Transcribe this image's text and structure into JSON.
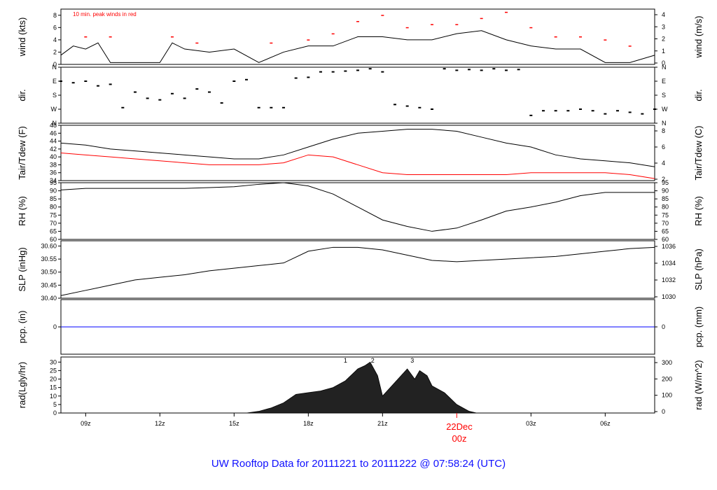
{
  "figure": {
    "footer": "UW Rooftop Data for 20111221  to  20111222 @ 07:58:24  (UTC)",
    "wind_note": "10 min. peak winds in red",
    "day_marker": {
      "label": "22Dec",
      "sublabel": "00z",
      "x_hours": 16.0
    },
    "x_ticks": [
      {
        "label": "09z",
        "x_hours": 1
      },
      {
        "label": "12z",
        "x_hours": 4
      },
      {
        "label": "15z",
        "x_hours": 7
      },
      {
        "label": "18z",
        "x_hours": 10
      },
      {
        "label": "21z",
        "x_hours": 13
      },
      {
        "label": "03z",
        "x_hours": 19
      },
      {
        "label": "06z",
        "x_hours": 22
      }
    ],
    "x_range_hours_from_08z": [
      0,
      24
    ]
  },
  "colors": {
    "line": "#000000",
    "dew": "#ff0000",
    "peak": "#ff0000",
    "precip": "#0000ff",
    "footer": "#1010ff",
    "day_marker": "#ff0000",
    "rad_marks": "#800080"
  },
  "chart_data": [
    {
      "type": "line",
      "panel": "wind",
      "ylabel": "wind (kts)",
      "ylabel_right": "wind (m/s)",
      "ylim": [
        0,
        9
      ],
      "yticks": [
        0,
        2,
        4,
        6,
        8
      ],
      "yticks_right": [
        "0",
        "1",
        "2",
        "3",
        "4"
      ],
      "series": [
        {
          "name": "wind",
          "x": [
            0,
            0.5,
            1,
            1.5,
            2,
            3,
            4,
            4.5,
            5,
            6,
            7,
            8,
            9,
            10,
            11,
            12,
            13,
            14,
            15,
            16,
            17,
            18,
            19,
            20,
            21,
            22,
            23,
            24
          ],
          "y": [
            1.5,
            3,
            2.5,
            3.5,
            0.3,
            0.3,
            0.3,
            3.5,
            2.5,
            2,
            2.5,
            0.3,
            2,
            3,
            3,
            4.5,
            4.5,
            4,
            4,
            5,
            5.5,
            4,
            3,
            2.5,
            2.5,
            0.3,
            0.3,
            1.5
          ]
        },
        {
          "name": "peak",
          "x": [
            1,
            2,
            4.5,
            5.5,
            8.5,
            10,
            11,
            12,
            13,
            14,
            15,
            16,
            17,
            18,
            19,
            20,
            21,
            22,
            23
          ],
          "y": [
            4.5,
            4.5,
            4.5,
            3.5,
            3.5,
            4,
            5,
            7,
            8,
            6,
            6.5,
            6.5,
            7.5,
            8.5,
            6,
            4.5,
            4.5,
            4,
            3
          ]
        }
      ]
    },
    {
      "type": "scatter",
      "panel": "dir",
      "ylabel": "dir.",
      "ylabel_right": "dir.",
      "yticks": [
        "N",
        "W",
        "S",
        "E",
        "N"
      ],
      "ylim": [
        0,
        360
      ],
      "series": [
        {
          "name": "direction",
          "x": [
            0,
            0.5,
            1,
            1.5,
            2,
            2.5,
            3,
            3.5,
            4,
            4.5,
            5,
            5.5,
            6,
            6.5,
            7,
            7.5,
            8,
            8.5,
            9,
            9.5,
            10,
            10.5,
            11,
            11.5,
            12,
            12.5,
            13,
            13.5,
            14,
            14.5,
            15,
            15.5,
            16,
            16.5,
            17,
            17.5,
            18,
            18.5,
            19,
            19.5,
            20,
            20.5,
            21,
            21.5,
            22,
            22.5,
            23,
            23.5,
            24
          ],
          "y": [
            270,
            260,
            270,
            240,
            250,
            100,
            200,
            160,
            150,
            190,
            160,
            220,
            200,
            130,
            270,
            280,
            100,
            100,
            100,
            290,
            295,
            330,
            330,
            335,
            340,
            350,
            330,
            120,
            110,
            100,
            90,
            350,
            340,
            345,
            340,
            350,
            340,
            345,
            50,
            80,
            80,
            80,
            90,
            80,
            60,
            80,
            70,
            60,
            90
          ]
        }
      ]
    },
    {
      "type": "line",
      "panel": "temp",
      "ylabel": "Tair/Tdew (F)",
      "ylabel_right": "Tair/Tdew (C)",
      "ylim": [
        34,
        48
      ],
      "yticks": [
        34,
        36,
        38,
        40,
        42,
        44,
        46,
        48
      ],
      "yticks_right": [
        "2",
        "4",
        "6",
        "8"
      ],
      "series": [
        {
          "name": "Tair",
          "x": [
            0,
            1,
            2,
            3,
            4,
            5,
            6,
            7,
            8,
            9,
            10,
            11,
            12,
            13,
            14,
            15,
            16,
            17,
            18,
            19,
            20,
            21,
            22,
            23,
            24
          ],
          "y": [
            43.5,
            43.0,
            42.0,
            41.5,
            41.0,
            40.5,
            40.0,
            39.5,
            39.5,
            40.5,
            42.5,
            44.5,
            46.0,
            46.5,
            47.0,
            47.0,
            46.5,
            45.0,
            43.5,
            42.5,
            40.5,
            39.5,
            39.0,
            38.5,
            37.5
          ]
        },
        {
          "name": "Tdew",
          "x": [
            0,
            1,
            2,
            3,
            4,
            5,
            6,
            7,
            8,
            9,
            10,
            11,
            12,
            13,
            14,
            15,
            16,
            17,
            18,
            19,
            20,
            21,
            22,
            23,
            24
          ],
          "y": [
            41.0,
            40.5,
            40.0,
            39.5,
            39.0,
            38.5,
            38.0,
            38.0,
            38.0,
            38.5,
            40.5,
            40.0,
            38.0,
            36.0,
            35.5,
            35.5,
            35.5,
            35.5,
            35.5,
            36.0,
            36.0,
            36.0,
            36.0,
            35.5,
            34.5
          ]
        }
      ]
    },
    {
      "type": "line",
      "panel": "rh",
      "ylabel": "RH (%)",
      "ylabel_right": "RH (%)",
      "ylim": [
        60,
        95
      ],
      "yticks": [
        60,
        65,
        70,
        75,
        80,
        85,
        90,
        95
      ],
      "series": [
        {
          "name": "RH",
          "x": [
            0,
            1,
            2,
            3,
            4,
            5,
            6,
            7,
            8,
            9,
            10,
            11,
            12,
            13,
            14,
            15,
            16,
            17,
            18,
            19,
            20,
            21,
            22,
            23,
            24
          ],
          "y": [
            90.5,
            91.5,
            91.5,
            91.5,
            91.5,
            91.5,
            92.0,
            92.5,
            94.0,
            95.0,
            93.0,
            88.0,
            80.0,
            72.0,
            68.0,
            65.0,
            67.0,
            72.0,
            77.5,
            80.0,
            83.0,
            87.0,
            89.0,
            89.0,
            89.0
          ]
        }
      ]
    },
    {
      "type": "line",
      "panel": "slp",
      "ylabel": "SLP (inHg)",
      "ylabel_right": "SLP (hPa)",
      "ylim": [
        30.4,
        30.62
      ],
      "yticks": [
        30.4,
        30.45,
        30.5,
        30.55,
        30.6
      ],
      "yticks_right": [
        "1030",
        "1032",
        "1034",
        "1036"
      ],
      "series": [
        {
          "name": "SLP",
          "x": [
            0,
            1,
            2,
            3,
            4,
            5,
            6,
            7,
            8,
            9,
            10,
            11,
            12,
            13,
            14,
            15,
            16,
            17,
            18,
            19,
            20,
            21,
            22,
            23,
            24
          ],
          "y": [
            30.41,
            30.43,
            30.45,
            30.47,
            30.48,
            30.49,
            30.505,
            30.515,
            30.525,
            30.535,
            30.58,
            30.595,
            30.595,
            30.585,
            30.565,
            30.545,
            30.54,
            30.545,
            30.55,
            30.555,
            30.56,
            30.57,
            30.58,
            30.59,
            30.595
          ]
        }
      ]
    },
    {
      "type": "line",
      "panel": "pcp",
      "ylabel": "pcp. (in)",
      "ylabel_right": "pcp. (mm)",
      "ylim": [
        -1,
        1
      ],
      "yticks": [
        0
      ],
      "yticks_right": [
        "0"
      ],
      "series": [
        {
          "name": "pcp",
          "x": [
            0,
            24
          ],
          "y": [
            0,
            0
          ]
        }
      ]
    },
    {
      "type": "area",
      "panel": "rad",
      "ylabel": "rad(Lgly/hr)",
      "ylabel_right": "rad (W/m^2)",
      "ylim": [
        0,
        33
      ],
      "yticks": [
        0,
        5,
        10,
        15,
        20,
        25,
        30
      ],
      "yticks_right": [
        "0",
        "100",
        "200",
        "300"
      ],
      "markers": [
        {
          "label": "1",
          "x": 11.5
        },
        {
          "label": "2",
          "x": 12.6
        },
        {
          "label": "3",
          "x": 14.2
        }
      ],
      "series": [
        {
          "name": "rad",
          "x": [
            7.5,
            8.0,
            8.5,
            9.0,
            9.5,
            10.0,
            10.5,
            11.0,
            11.5,
            12.0,
            12.3,
            12.5,
            12.8,
            13.0,
            13.5,
            14.0,
            14.3,
            14.5,
            14.8,
            15.0,
            15.5,
            16.0,
            16.5,
            16.8
          ],
          "y": [
            0,
            1,
            3,
            6,
            11,
            12,
            13,
            15,
            19,
            26,
            28,
            30,
            22,
            10,
            18,
            26,
            20,
            25,
            22,
            16,
            12,
            5,
            1,
            0
          ]
        }
      ]
    }
  ]
}
